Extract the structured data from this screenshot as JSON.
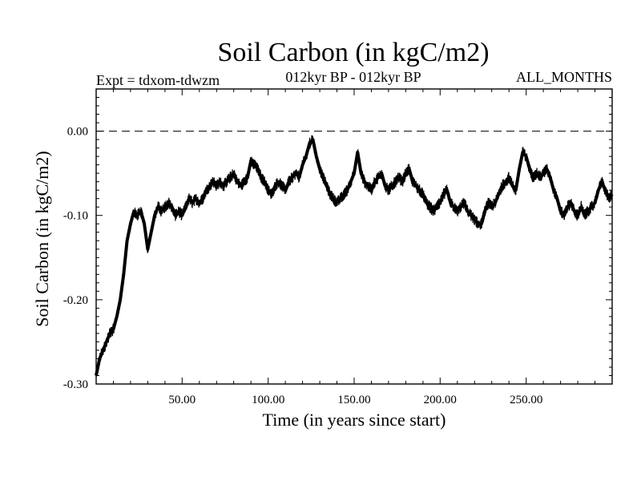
{
  "chart_data": {
    "type": "line",
    "title": "Soil Carbon (in kgC/m2)",
    "subtitle_left": "Expt = tdxom-tdwzm",
    "subtitle_center": "012kyr BP - 012kyr BP",
    "subtitle_right": "ALL_MONTHS",
    "xlabel": "Time (in years since start)",
    "ylabel": "Soil Carbon (in kgC/m2)",
    "xlim": [
      0,
      300
    ],
    "ylim": [
      -0.3,
      0.05
    ],
    "xticks": [
      {
        "value": 50,
        "label": "50.00"
      },
      {
        "value": 100,
        "label": "100.00"
      },
      {
        "value": 150,
        "label": "150.00"
      },
      {
        "value": 200,
        "label": "200.00"
      },
      {
        "value": 250,
        "label": "250.00"
      }
    ],
    "yticks": [
      {
        "value": 0.0,
        "label": "0.00"
      },
      {
        "value": -0.1,
        "label": "-0.10"
      },
      {
        "value": -0.2,
        "label": "-0.20"
      },
      {
        "value": -0.3,
        "label": "-0.30"
      }
    ],
    "reference_line": {
      "y": 0.0,
      "style": "dashed"
    },
    "grid": false,
    "series": [
      {
        "x": [
          0,
          2,
          4,
          6,
          8,
          10,
          12,
          14,
          16,
          18,
          20,
          22,
          24,
          26,
          28,
          30,
          32,
          34,
          36,
          38,
          40,
          42,
          44,
          46,
          48,
          50,
          52,
          54,
          56,
          58,
          60,
          62,
          64,
          66,
          68,
          70,
          72,
          74,
          76,
          78,
          80,
          82,
          84,
          86,
          88,
          90,
          92,
          94,
          96,
          98,
          100,
          102,
          104,
          106,
          108,
          110,
          112,
          114,
          116,
          118,
          120,
          122,
          124,
          126,
          128,
          130,
          132,
          134,
          136,
          138,
          140,
          142,
          144,
          146,
          148,
          150,
          152,
          154,
          156,
          158,
          160,
          162,
          164,
          166,
          168,
          170,
          172,
          174,
          176,
          178,
          180,
          182,
          184,
          186,
          188,
          190,
          192,
          194,
          196,
          198,
          200,
          202,
          204,
          206,
          208,
          210,
          212,
          214,
          216,
          218,
          220,
          222,
          224,
          226,
          228,
          230,
          232,
          234,
          236,
          238,
          240,
          242,
          244,
          246,
          248,
          250,
          252,
          254,
          256,
          258,
          260,
          262,
          264,
          266,
          268,
          270,
          272,
          274,
          276,
          278,
          280,
          282,
          284,
          286,
          288,
          290,
          292,
          294,
          296,
          298,
          300
        ],
        "y": [
          -0.29,
          -0.27,
          -0.26,
          -0.25,
          -0.24,
          -0.235,
          -0.22,
          -0.2,
          -0.17,
          -0.13,
          -0.11,
          -0.095,
          -0.1,
          -0.095,
          -0.11,
          -0.14,
          -0.12,
          -0.1,
          -0.09,
          -0.095,
          -0.09,
          -0.085,
          -0.09,
          -0.1,
          -0.095,
          -0.1,
          -0.09,
          -0.08,
          -0.085,
          -0.08,
          -0.085,
          -0.08,
          -0.07,
          -0.065,
          -0.06,
          -0.065,
          -0.06,
          -0.065,
          -0.06,
          -0.055,
          -0.05,
          -0.06,
          -0.065,
          -0.06,
          -0.055,
          -0.035,
          -0.04,
          -0.045,
          -0.055,
          -0.06,
          -0.07,
          -0.075,
          -0.065,
          -0.06,
          -0.065,
          -0.07,
          -0.06,
          -0.055,
          -0.05,
          -0.055,
          -0.04,
          -0.03,
          -0.015,
          -0.01,
          -0.03,
          -0.045,
          -0.055,
          -0.065,
          -0.075,
          -0.08,
          -0.085,
          -0.08,
          -0.075,
          -0.07,
          -0.06,
          -0.05,
          -0.025,
          -0.05,
          -0.06,
          -0.065,
          -0.07,
          -0.06,
          -0.055,
          -0.05,
          -0.065,
          -0.07,
          -0.065,
          -0.06,
          -0.055,
          -0.06,
          -0.05,
          -0.045,
          -0.06,
          -0.065,
          -0.07,
          -0.075,
          -0.085,
          -0.09,
          -0.095,
          -0.09,
          -0.085,
          -0.075,
          -0.07,
          -0.085,
          -0.09,
          -0.095,
          -0.09,
          -0.085,
          -0.095,
          -0.1,
          -0.105,
          -0.11,
          -0.11,
          -0.095,
          -0.085,
          -0.09,
          -0.085,
          -0.075,
          -0.065,
          -0.06,
          -0.055,
          -0.065,
          -0.07,
          -0.045,
          -0.025,
          -0.03,
          -0.045,
          -0.055,
          -0.05,
          -0.055,
          -0.05,
          -0.045,
          -0.055,
          -0.07,
          -0.08,
          -0.095,
          -0.1,
          -0.09,
          -0.085,
          -0.095,
          -0.1,
          -0.09,
          -0.1,
          -0.095,
          -0.09,
          -0.085,
          -0.07,
          -0.06,
          -0.07,
          -0.08,
          -0.075
        ]
      }
    ]
  }
}
